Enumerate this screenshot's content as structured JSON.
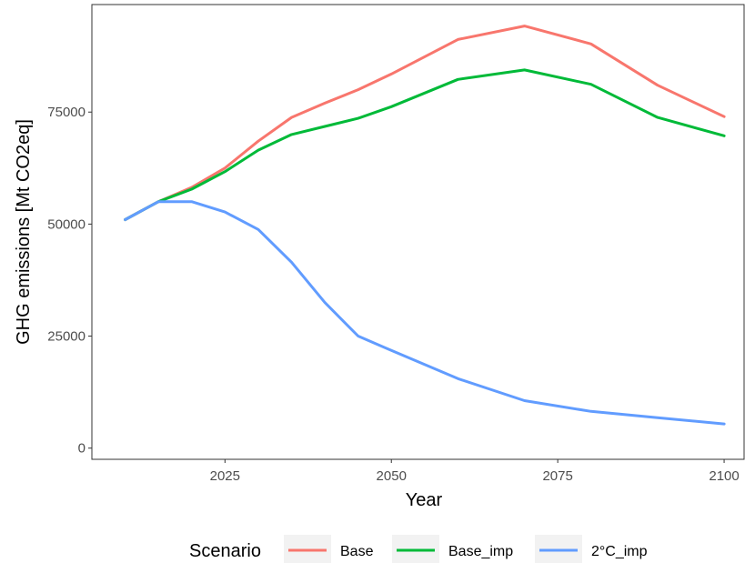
{
  "chart_data": {
    "type": "line",
    "xlabel": "Year",
    "ylabel": "GHG emissions [Mt CO2eq]",
    "xlim": [
      2005,
      2103
    ],
    "ylim": [
      -2500,
      99000
    ],
    "xticks": [
      2025,
      2050,
      2075,
      2100
    ],
    "yticks": [
      0,
      25000,
      50000,
      75000
    ],
    "grid": false,
    "legend_position": "bottom",
    "legend_title": "Scenario",
    "x": [
      2010,
      2015,
      2020,
      2025,
      2030,
      2035,
      2040,
      2045,
      2050,
      2060,
      2070,
      2080,
      2090,
      2100
    ],
    "series": [
      {
        "name": "Base",
        "color": "#F8766D",
        "values": [
          51000,
          55000,
          58200,
          62500,
          68500,
          73800,
          77000,
          80000,
          83500,
          91200,
          94200,
          90200,
          81000,
          74000
        ]
      },
      {
        "name": "Base_imp",
        "color": "#00BA38",
        "values": [
          51000,
          55000,
          57800,
          61700,
          66500,
          70000,
          71800,
          73600,
          76200,
          82300,
          84400,
          81200,
          73800,
          69700
        ]
      },
      {
        "name": "2°C_imp",
        "color": "#619CFF",
        "values": [
          51000,
          55000,
          55000,
          52700,
          48800,
          41500,
          32500,
          25000,
          21800,
          15500,
          10600,
          8200,
          6800,
          5400
        ]
      }
    ]
  }
}
